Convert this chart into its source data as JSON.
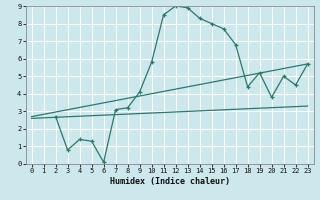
{
  "xlabel": "Humidex (Indice chaleur)",
  "bg_color": "#cce8ec",
  "grid_color": "#ffffff",
  "line_color": "#2a7a6a",
  "xlim": [
    -0.5,
    23.5
  ],
  "ylim": [
    0,
    9
  ],
  "xticks": [
    0,
    1,
    2,
    3,
    4,
    5,
    6,
    7,
    8,
    9,
    10,
    11,
    12,
    13,
    14,
    15,
    16,
    17,
    18,
    19,
    20,
    21,
    22,
    23
  ],
  "yticks": [
    0,
    1,
    2,
    3,
    4,
    5,
    6,
    7,
    8,
    9
  ],
  "line1_x": [
    0,
    23
  ],
  "line1_y": [
    2.7,
    5.7
  ],
  "line2_x": [
    0,
    23
  ],
  "line2_y": [
    2.6,
    3.3
  ],
  "line3_x": [
    2,
    3,
    4,
    5,
    6,
    7,
    8,
    9,
    10,
    11,
    12,
    13,
    14,
    15,
    16,
    17,
    18,
    19,
    20,
    21,
    22,
    23
  ],
  "line3_y": [
    2.7,
    0.8,
    1.4,
    1.3,
    0.1,
    3.1,
    3.2,
    4.1,
    5.8,
    8.5,
    9.0,
    8.9,
    8.3,
    8.0,
    7.7,
    6.8,
    4.4,
    5.2,
    3.8,
    5.0,
    4.5,
    5.7
  ]
}
